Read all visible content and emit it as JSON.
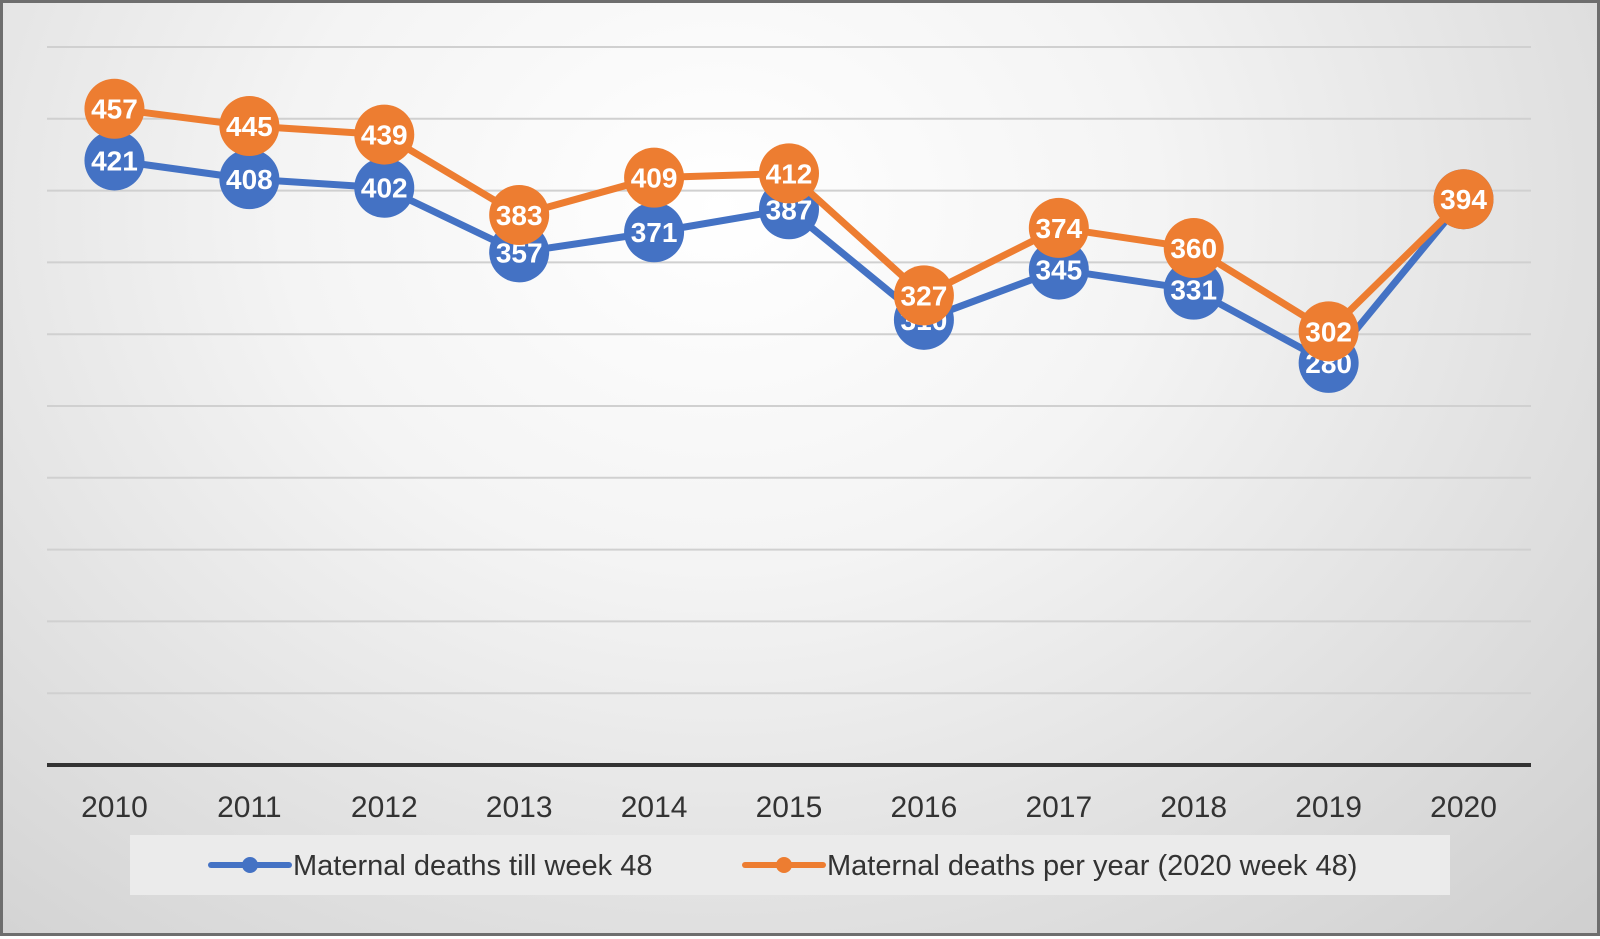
{
  "chart_data": {
    "type": "line",
    "title": "",
    "xlabel": "",
    "ylabel": "",
    "categories": [
      "2010",
      "2011",
      "2012",
      "2013",
      "2014",
      "2015",
      "2016",
      "2017",
      "2018",
      "2019",
      "2020"
    ],
    "ylim": [
      0,
      500
    ],
    "grid": true,
    "legend_position": "bottom",
    "series": [
      {
        "name": "Maternal deaths till week 48",
        "color": "#4472C4",
        "values": [
          421,
          408,
          402,
          357,
          371,
          387,
          310,
          345,
          331,
          280,
          394
        ]
      },
      {
        "name": "Maternal deaths per year (2020 week 48)",
        "color": "#ED7D31",
        "values": [
          457,
          445,
          439,
          383,
          409,
          412,
          327,
          374,
          360,
          302,
          394
        ]
      }
    ]
  }
}
